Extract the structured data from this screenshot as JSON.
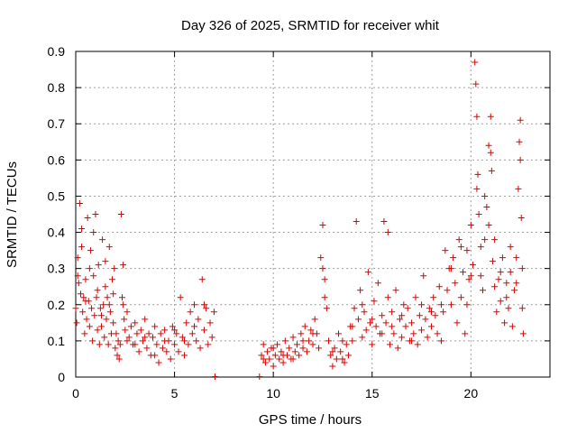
{
  "chart_data": {
    "type": "scatter",
    "title": "Day 326 of 2025, SRMTID for receiver whit",
    "xlabel": "GPS time / hours",
    "ylabel": "SRMTID / TECUs",
    "xlim": [
      0,
      24
    ],
    "ylim": [
      0,
      0.9
    ],
    "xticks": [
      0,
      5,
      10,
      15,
      20
    ],
    "xtick_labels": [
      "0",
      "5",
      "10",
      "15",
      "20"
    ],
    "yticks": [
      0,
      0.1,
      0.2,
      0.3,
      0.4,
      0.5,
      0.6,
      0.7,
      0.8,
      0.9
    ],
    "ytick_labels": [
      "0",
      "0.1",
      "0.2",
      "0.3",
      "0.4",
      "0.5",
      "0.6",
      "0.7",
      "0.8",
      "0.9"
    ],
    "grid": true,
    "marker": "+",
    "color": "#dd0000",
    "series": [
      {
        "name": "SRMTID",
        "points": [
          [
            0.0,
            0.19
          ],
          [
            0.05,
            0.15
          ],
          [
            0.1,
            0.33
          ],
          [
            0.15,
            0.26
          ],
          [
            0.2,
            0.48
          ],
          [
            0.25,
            0.23
          ],
          [
            0.3,
            0.41
          ],
          [
            0.35,
            0.18
          ],
          [
            0.4,
            0.22
          ],
          [
            0.45,
            0.12
          ],
          [
            0.5,
            0.27
          ],
          [
            0.55,
            0.16
          ],
          [
            0.6,
            0.44
          ],
          [
            0.65,
            0.21
          ],
          [
            0.7,
            0.14
          ],
          [
            0.75,
            0.35
          ],
          [
            0.8,
            0.19
          ],
          [
            0.85,
            0.1
          ],
          [
            0.9,
            0.28
          ],
          [
            0.95,
            0.17
          ],
          [
            1.0,
            0.45
          ],
          [
            1.05,
            0.22
          ],
          [
            1.1,
            0.13
          ],
          [
            1.15,
            0.31
          ],
          [
            1.2,
            0.09
          ],
          [
            1.25,
            0.19
          ],
          [
            1.3,
            0.14
          ],
          [
            1.35,
            0.38
          ],
          [
            1.4,
            0.2
          ],
          [
            1.45,
            0.11
          ],
          [
            1.5,
            0.25
          ],
          [
            1.55,
            0.16
          ],
          [
            1.6,
            0.22
          ],
          [
            1.65,
            0.09
          ],
          [
            1.7,
            0.36
          ],
          [
            1.75,
            0.18
          ],
          [
            1.8,
            0.12
          ],
          [
            1.85,
            0.27
          ],
          [
            1.9,
            0.15
          ],
          [
            1.95,
            0.3
          ],
          [
            2.0,
            0.08
          ],
          [
            2.05,
            0.12
          ],
          [
            2.1,
            0.06
          ],
          [
            2.15,
            0.1
          ],
          [
            2.2,
            0.05
          ],
          [
            2.25,
            0.09
          ],
          [
            2.3,
            0.45
          ],
          [
            2.35,
            0.22
          ],
          [
            2.4,
            0.31
          ],
          [
            2.45,
            0.16
          ],
          [
            2.5,
            0.13
          ],
          [
            2.6,
            0.18
          ],
          [
            2.7,
            0.11
          ],
          [
            2.8,
            0.14
          ],
          [
            2.9,
            0.09
          ],
          [
            3.0,
            0.15
          ],
          [
            3.1,
            0.12
          ],
          [
            3.2,
            0.07
          ],
          [
            3.3,
            0.13
          ],
          [
            3.4,
            0.1
          ],
          [
            3.5,
            0.16
          ],
          [
            3.6,
            0.08
          ],
          [
            3.7,
            0.12
          ],
          [
            3.8,
            0.06
          ],
          [
            3.9,
            0.11
          ],
          [
            4.0,
            0.14
          ],
          [
            4.1,
            0.09
          ],
          [
            4.2,
            0.04
          ],
          [
            4.3,
            0.12
          ],
          [
            4.4,
            0.08
          ],
          [
            4.5,
            0.13
          ],
          [
            4.6,
            0.07
          ],
          [
            4.7,
            0.1
          ],
          [
            4.8,
            0.05
          ],
          [
            4.9,
            0.14
          ],
          [
            5.0,
            0.09
          ],
          [
            5.1,
            0.12
          ],
          [
            5.2,
            0.07
          ],
          [
            5.3,
            0.22
          ],
          [
            5.4,
            0.11
          ],
          [
            5.5,
            0.06
          ],
          [
            5.6,
            0.15
          ],
          [
            5.7,
            0.09
          ],
          [
            5.8,
            0.18
          ],
          [
            5.9,
            0.12
          ],
          [
            6.0,
            0.2
          ],
          [
            6.1,
            0.1
          ],
          [
            6.2,
            0.16
          ],
          [
            6.3,
            0.08
          ],
          [
            6.4,
            0.27
          ],
          [
            6.5,
            0.13
          ],
          [
            6.6,
            0.19
          ],
          [
            6.7,
            0.09
          ],
          [
            6.8,
            0.15
          ],
          [
            6.9,
            0.11
          ],
          [
            7.0,
            0.18
          ],
          [
            7.05,
            0.0
          ],
          [
            9.3,
            0.0
          ],
          [
            9.4,
            0.06
          ],
          [
            9.5,
            0.09
          ],
          [
            9.6,
            0.04
          ],
          [
            9.7,
            0.07
          ],
          [
            9.8,
            0.05
          ],
          [
            9.9,
            0.08
          ],
          [
            10.0,
            0.03
          ],
          [
            10.1,
            0.06
          ],
          [
            10.2,
            0.09
          ],
          [
            10.3,
            0.05
          ],
          [
            10.4,
            0.07
          ],
          [
            10.5,
            0.04
          ],
          [
            10.6,
            0.1
          ],
          [
            10.7,
            0.06
          ],
          [
            10.8,
            0.08
          ],
          [
            10.9,
            0.05
          ],
          [
            11.0,
            0.11
          ],
          [
            11.1,
            0.07
          ],
          [
            11.2,
            0.09
          ],
          [
            11.3,
            0.06
          ],
          [
            11.4,
            0.12
          ],
          [
            11.5,
            0.08
          ],
          [
            11.6,
            0.14
          ],
          [
            11.7,
            0.07
          ],
          [
            11.8,
            0.1
          ],
          [
            11.9,
            0.13
          ],
          [
            12.0,
            0.09
          ],
          [
            12.1,
            0.16
          ],
          [
            12.2,
            0.12
          ],
          [
            12.3,
            0.08
          ],
          [
            12.4,
            0.33
          ],
          [
            12.5,
            0.42
          ],
          [
            12.6,
            0.27
          ],
          [
            12.7,
            0.19
          ],
          [
            12.8,
            0.1
          ],
          [
            12.9,
            0.06
          ],
          [
            13.0,
            0.03
          ],
          [
            13.1,
            0.08
          ],
          [
            13.2,
            0.05
          ],
          [
            13.3,
            0.12
          ],
          [
            13.4,
            0.07
          ],
          [
            13.5,
            0.1
          ],
          [
            13.6,
            0.04
          ],
          [
            13.7,
            0.09
          ],
          [
            13.8,
            0.06
          ],
          [
            13.9,
            0.14
          ],
          [
            14.0,
            0.1
          ],
          [
            14.1,
            0.19
          ],
          [
            14.2,
            0.43
          ],
          [
            14.3,
            0.16
          ],
          [
            14.4,
            0.24
          ],
          [
            14.5,
            0.11
          ],
          [
            14.6,
            0.18
          ],
          [
            14.7,
            0.13
          ],
          [
            14.8,
            0.29
          ],
          [
            14.9,
            0.15
          ],
          [
            15.0,
            0.09
          ],
          [
            15.1,
            0.21
          ],
          [
            15.2,
            0.14
          ],
          [
            15.3,
            0.26
          ],
          [
            15.4,
            0.12
          ],
          [
            15.5,
            0.17
          ],
          [
            15.6,
            0.43
          ],
          [
            15.7,
            0.15
          ],
          [
            15.8,
            0.22
          ],
          [
            15.9,
            0.09
          ],
          [
            16.0,
            0.18
          ],
          [
            16.1,
            0.12
          ],
          [
            16.2,
            0.24
          ],
          [
            16.3,
            0.08
          ],
          [
            16.4,
            0.16
          ],
          [
            16.5,
            0.11
          ],
          [
            16.6,
            0.2
          ],
          [
            16.7,
            0.14
          ],
          [
            16.8,
            0.19
          ],
          [
            16.9,
            0.1
          ],
          [
            17.0,
            0.15
          ],
          [
            17.1,
            0.12
          ],
          [
            17.2,
            0.22
          ],
          [
            17.3,
            0.09
          ],
          [
            17.4,
            0.17
          ],
          [
            17.5,
            0.13
          ],
          [
            17.6,
            0.28
          ],
          [
            17.7,
            0.16
          ],
          [
            17.8,
            0.11
          ],
          [
            17.9,
            0.19
          ],
          [
            18.0,
            0.14
          ],
          [
            18.1,
            0.22
          ],
          [
            18.2,
            0.17
          ],
          [
            18.3,
            0.12
          ],
          [
            18.4,
            0.25
          ],
          [
            18.5,
            0.1
          ],
          [
            18.6,
            0.18
          ],
          [
            18.7,
            0.35
          ],
          [
            18.8,
            0.24
          ],
          [
            18.9,
            0.3
          ],
          [
            19.0,
            0.2
          ],
          [
            19.1,
            0.33
          ],
          [
            19.2,
            0.26
          ],
          [
            19.3,
            0.15
          ],
          [
            19.4,
            0.38
          ],
          [
            19.5,
            0.22
          ],
          [
            19.6,
            0.29
          ],
          [
            19.7,
            0.12
          ],
          [
            19.8,
            0.35
          ],
          [
            19.9,
            0.27
          ],
          [
            20.0,
            0.42
          ],
          [
            20.1,
            0.31
          ],
          [
            20.2,
            0.87
          ],
          [
            20.25,
            0.81
          ],
          [
            20.3,
            0.72
          ],
          [
            20.35,
            0.56
          ],
          [
            20.4,
            0.45
          ],
          [
            20.5,
            0.36
          ],
          [
            20.6,
            0.24
          ],
          [
            20.7,
            0.38
          ],
          [
            20.8,
            0.47
          ],
          [
            20.9,
            0.64
          ],
          [
            21.0,
            0.72
          ],
          [
            21.05,
            0.57
          ],
          [
            21.1,
            0.32
          ],
          [
            21.2,
            0.25
          ],
          [
            21.3,
            0.18
          ],
          [
            21.4,
            0.27
          ],
          [
            21.5,
            0.21
          ],
          [
            21.6,
            0.33
          ],
          [
            21.7,
            0.15
          ],
          [
            21.8,
            0.26
          ],
          [
            21.9,
            0.19
          ],
          [
            22.0,
            0.29
          ],
          [
            22.1,
            0.14
          ],
          [
            22.2,
            0.24
          ],
          [
            22.3,
            0.33
          ],
          [
            22.4,
            0.52
          ],
          [
            22.45,
            0.65
          ],
          [
            22.5,
            0.71
          ],
          [
            22.55,
            0.44
          ],
          [
            22.6,
            0.19
          ],
          [
            22.65,
            0.12
          ],
          [
            0.1,
            0.28
          ],
          [
            0.3,
            0.36
          ],
          [
            0.5,
            0.21
          ],
          [
            0.7,
            0.3
          ],
          [
            0.9,
            0.4
          ],
          [
            1.1,
            0.24
          ],
          [
            1.3,
            0.17
          ],
          [
            1.5,
            0.32
          ],
          [
            1.7,
            0.2
          ],
          [
            1.9,
            0.23
          ],
          [
            2.4,
            0.2
          ],
          [
            2.6,
            0.1
          ],
          [
            3.0,
            0.09
          ],
          [
            3.5,
            0.11
          ],
          [
            4.0,
            0.06
          ],
          [
            4.5,
            0.1
          ],
          [
            5.0,
            0.13
          ],
          [
            5.5,
            0.1
          ],
          [
            6.0,
            0.14
          ],
          [
            6.5,
            0.2
          ],
          [
            9.5,
            0.05
          ],
          [
            10.0,
            0.08
          ],
          [
            10.5,
            0.06
          ],
          [
            11.0,
            0.05
          ],
          [
            11.5,
            0.1
          ],
          [
            12.0,
            0.12
          ],
          [
            12.5,
            0.3
          ],
          [
            12.6,
            0.22
          ],
          [
            13.0,
            0.07
          ],
          [
            13.5,
            0.05
          ],
          [
            14.0,
            0.14
          ],
          [
            14.5,
            0.2
          ],
          [
            15.0,
            0.16
          ],
          [
            15.5,
            0.12
          ],
          [
            15.8,
            0.4
          ],
          [
            16.0,
            0.14
          ],
          [
            16.5,
            0.17
          ],
          [
            17.0,
            0.1
          ],
          [
            17.5,
            0.2
          ],
          [
            18.0,
            0.18
          ],
          [
            18.5,
            0.2
          ],
          [
            19.0,
            0.3
          ],
          [
            19.5,
            0.36
          ],
          [
            19.8,
            0.2
          ],
          [
            20.0,
            0.28
          ],
          [
            20.3,
            0.52
          ],
          [
            20.5,
            0.28
          ],
          [
            20.7,
            0.5
          ],
          [
            20.9,
            0.42
          ],
          [
            21.0,
            0.62
          ],
          [
            21.2,
            0.38
          ],
          [
            21.5,
            0.29
          ],
          [
            21.8,
            0.22
          ],
          [
            22.0,
            0.36
          ],
          [
            22.3,
            0.26
          ],
          [
            22.5,
            0.6
          ],
          [
            22.6,
            0.3
          ]
        ]
      }
    ]
  }
}
